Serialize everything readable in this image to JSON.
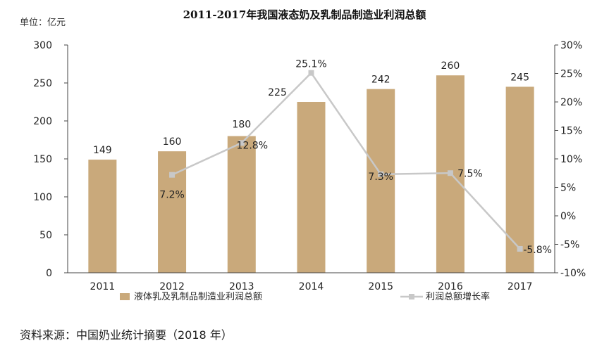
{
  "page": {
    "unit_label": "单位：亿元",
    "source": "资料来源：中国奶业统计摘要（2018 年）"
  },
  "chart_data": {
    "type": "bar",
    "title": "2011-2017年我国液态奶及乳制品制造业利润总额",
    "categories": [
      "2011",
      "2012",
      "2013",
      "2014",
      "2015",
      "2016",
      "2017"
    ],
    "ylim": [
      0,
      300
    ],
    "yticks": [
      "0",
      "50",
      "100",
      "150",
      "200",
      "250",
      "300"
    ],
    "y2lim": [
      -10,
      30
    ],
    "y2ticks": [
      "-10%",
      "-5%",
      "0%",
      "5%",
      "10%",
      "15%",
      "20%",
      "25%",
      "30%"
    ],
    "series": [
      {
        "name": "液体乳及乳制品制造业利润总额",
        "type": "bar",
        "axis": "left",
        "color": "#c9a97b",
        "values": [
          149,
          160,
          180,
          225,
          242,
          260,
          245
        ],
        "labels": [
          "149",
          "160",
          "180",
          "225",
          "242",
          "260",
          "245"
        ]
      },
      {
        "name": "利润总额增长率",
        "type": "line",
        "axis": "right",
        "color": "#c8c8c8",
        "values": [
          null,
          7.2,
          12.8,
          25.1,
          7.3,
          7.5,
          -5.8
        ],
        "labels": [
          null,
          "7.2%",
          "12.8%",
          "25.1%",
          "7.3%",
          "7.5%",
          "-5.8%"
        ]
      }
    ],
    "legend_position": "bottom"
  }
}
